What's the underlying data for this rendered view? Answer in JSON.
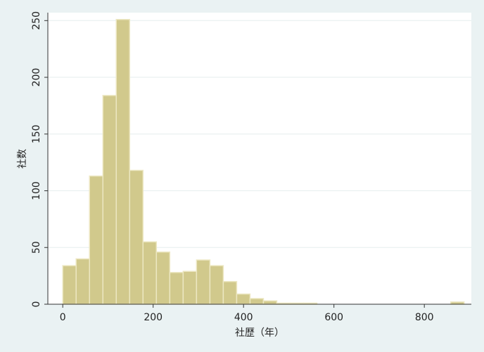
{
  "chart_data": {
    "type": "histogram",
    "x_label": "社歴（年）",
    "y_label": "社数",
    "bins": [
      0,
      29.6,
      59.2,
      88.8,
      118.4,
      148,
      177.6,
      207.2,
      236.8,
      266.4,
      296,
      325.6,
      355.2,
      384.8,
      414.4,
      444,
      473.6,
      503.2,
      532.8,
      562.4,
      592,
      621.6,
      651.2,
      680.8,
      710.4,
      740,
      769.6,
      799.2,
      828.8,
      858.4,
      888
    ],
    "counts": [
      34,
      40,
      113,
      184,
      251,
      118,
      55,
      46,
      28,
      29,
      39,
      34,
      20,
      9,
      5,
      3,
      1,
      1,
      1,
      0,
      0,
      0,
      0,
      0,
      0,
      0,
      0,
      0,
      0,
      2
    ],
    "color": "#d1c98c",
    "xlim": [
      -33,
      904
    ],
    "ylim": [
      0,
      257
    ],
    "xticks": [
      0,
      200,
      400,
      600,
      800
    ],
    "yticks": [
      0,
      50,
      100,
      150,
      200,
      250
    ],
    "grid": true
  }
}
